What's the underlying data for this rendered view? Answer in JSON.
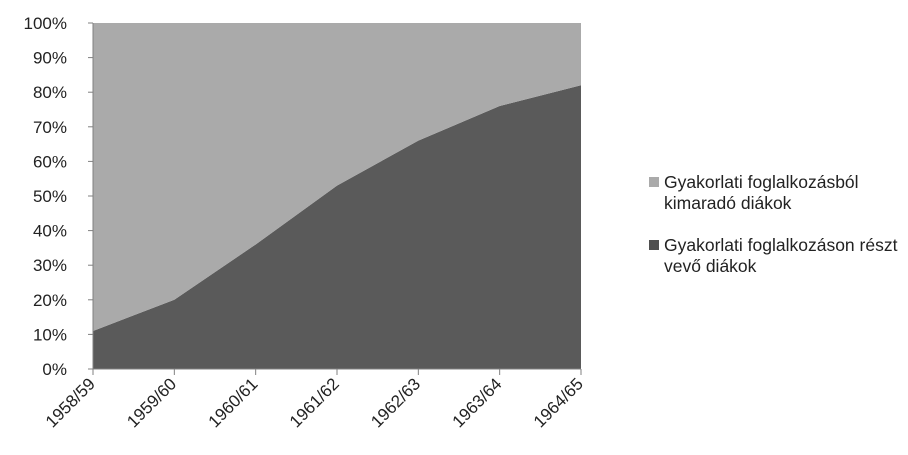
{
  "chart_data": {
    "type": "area",
    "stacked": "percent",
    "categories": [
      "1958/59",
      "1959/60",
      "1960/61",
      "1961/62",
      "1962/63",
      "1963/64",
      "1964/65"
    ],
    "series": [
      {
        "name": "Gyakorlati foglalkozásból kimaradó diákok",
        "color": "#aaaaaa",
        "values": [
          89,
          80,
          64,
          47,
          34,
          24,
          18
        ]
      },
      {
        "name": "Gyakorlati foglalkozáson részt vevő diákok",
        "color": "#5a5a5a",
        "values": [
          11,
          20,
          36,
          53,
          66,
          76,
          82
        ]
      }
    ],
    "ylim": [
      0,
      100
    ],
    "yticks": [
      "0%",
      "10%",
      "20%",
      "30%",
      "40%",
      "50%",
      "60%",
      "70%",
      "80%",
      "90%",
      "100%"
    ],
    "grid": false,
    "legend_position": "right"
  }
}
